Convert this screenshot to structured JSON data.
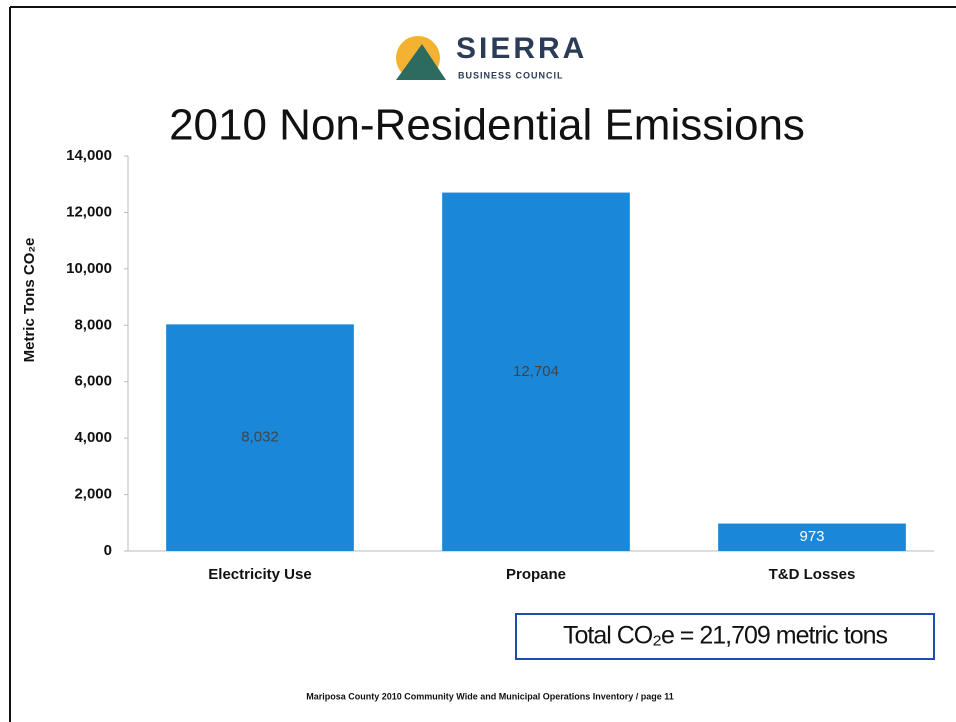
{
  "logo": {
    "name": "SIERRA",
    "subtitle": "BUSINESS COUNCIL"
  },
  "chart_data": {
    "type": "bar",
    "title": "2010 Non-Residential Emissions",
    "y_label": "Metric Tons CO₂e",
    "categories": [
      "Electricity Use",
      "Propane",
      "T&D Losses"
    ],
    "values": [
      8032,
      12704,
      973
    ],
    "value_labels": [
      "8,032",
      "12,704",
      "973"
    ],
    "color": "#1a87d9",
    "ylim": [
      0,
      14000
    ],
    "yticks": [
      0,
      {
        "value": 2000,
        "label": "2,000"
      },
      {
        "value": 4000,
        "label": "4,000"
      },
      {
        "value": 6000,
        "label": "6,000"
      },
      {
        "value": 8000,
        "label": "8,000"
      },
      {
        "value": 10000,
        "label": "10,000"
      },
      {
        "value": 12000,
        "label": "12,000"
      },
      {
        "value": 14000,
        "label": "14,000"
      }
    ],
    "grid": false,
    "annotation": "Total CO₂e = 21,709 metric tons"
  },
  "footer": "Mariposa County 2010 Community Wide and Municipal Operations Inventory / page 11"
}
